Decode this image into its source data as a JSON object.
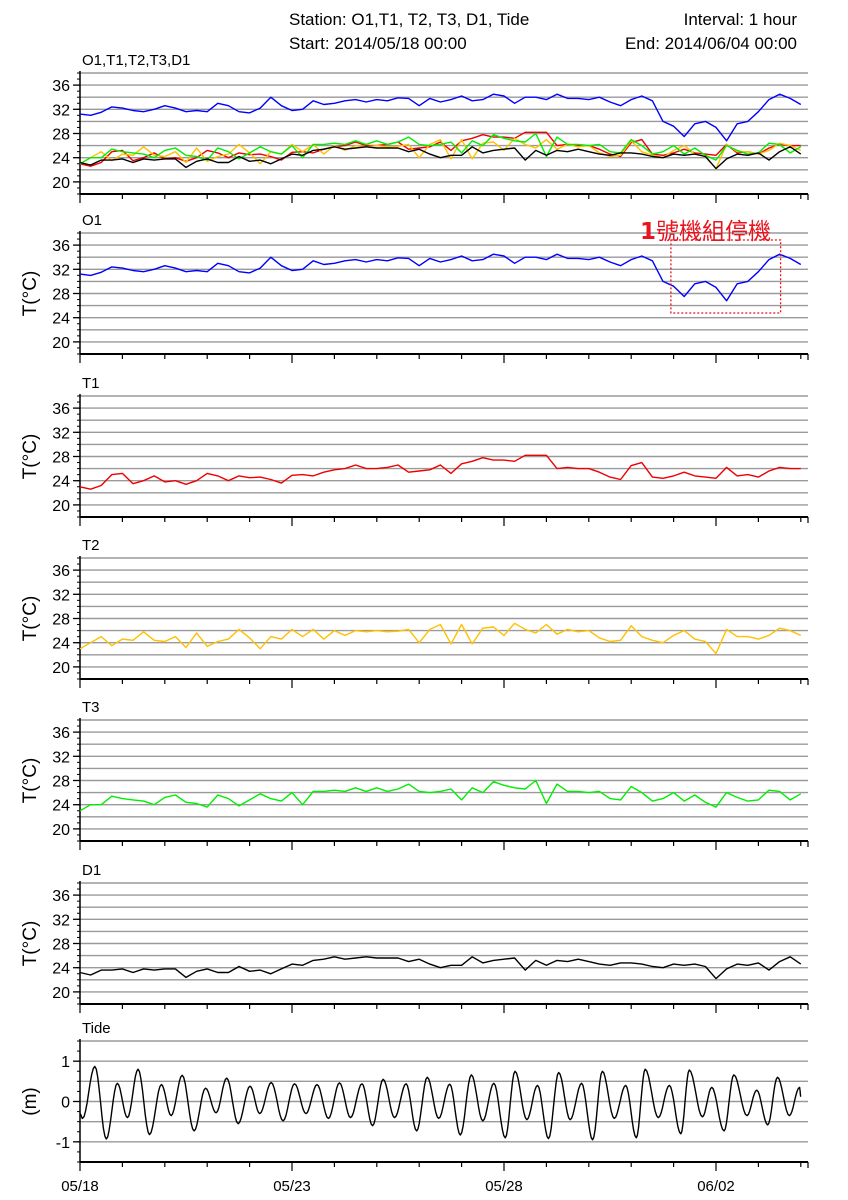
{
  "header": {
    "station": "Station: O1,T1, T2, T3, D1, Tide",
    "interval": "Interval: 1 hour",
    "start": "Start: 2014/05/18 00:00",
    "end": "End: 2014/06/04 00:00"
  },
  "annotation": {
    "num": "1",
    "text": "號機組停機",
    "color": "#e8141e"
  },
  "chart_data": {
    "type": "line",
    "x_unit": "days since 2014/05/18 00:00",
    "x_step_hours": 6,
    "xlim": [
      0,
      17.15
    ],
    "x_ticks": [
      0,
      5,
      10,
      15
    ],
    "x_tick_labels": [
      "05/18",
      "05/23",
      "05/28",
      "06/02"
    ],
    "colors": {
      "O1": "#0000ff",
      "T1": "#ee0000",
      "T2": "#ffc000",
      "T3": "#00ee00",
      "D1": "#000000",
      "Tide": "#000000"
    },
    "series": {
      "O1": [
        31.2,
        31.0,
        31.5,
        32.4,
        32.2,
        31.8,
        31.6,
        32.0,
        32.6,
        32.2,
        31.6,
        31.8,
        31.6,
        33.0,
        32.6,
        31.6,
        31.4,
        32.2,
        34.0,
        32.6,
        31.8,
        32.0,
        33.4,
        32.8,
        33.0,
        33.4,
        33.6,
        33.2,
        33.6,
        33.4,
        33.9,
        33.8,
        32.6,
        33.8,
        33.2,
        33.6,
        34.2,
        33.4,
        33.6,
        34.5,
        34.2,
        33.0,
        34.0,
        34.0,
        33.6,
        34.5,
        33.8,
        33.8,
        33.6,
        34.0,
        33.2,
        32.6,
        33.6,
        34.2,
        33.4,
        30.0,
        29.2,
        27.5,
        29.6,
        30.0,
        29.0,
        26.8,
        29.6,
        30.0,
        31.6,
        33.6,
        34.5,
        33.8,
        32.8
      ],
      "T1": [
        23.0,
        22.6,
        23.2,
        25.0,
        25.2,
        23.5,
        24.0,
        24.8,
        23.8,
        24.0,
        23.4,
        24.0,
        25.2,
        24.8,
        24.0,
        24.8,
        24.5,
        24.6,
        24.2,
        23.6,
        24.9,
        25.0,
        24.8,
        25.4,
        25.8,
        26.0,
        26.6,
        26.0,
        26.0,
        26.2,
        26.6,
        25.4,
        25.6,
        25.8,
        26.6,
        25.2,
        26.8,
        27.2,
        27.8,
        27.4,
        27.4,
        27.2,
        28.2,
        28.2,
        28.2,
        26.0,
        26.2,
        26.0,
        26.0,
        25.4,
        24.6,
        24.2,
        26.5,
        27.0,
        24.6,
        24.4,
        24.8,
        25.4,
        24.8,
        24.6,
        24.4,
        26.2,
        24.8,
        25.0,
        24.6,
        25.6,
        26.2,
        26.0,
        26.0
      ],
      "T2": [
        23.0,
        24.0,
        25.0,
        23.5,
        24.6,
        24.4,
        25.8,
        24.4,
        24.2,
        25.0,
        23.2,
        25.6,
        23.4,
        24.2,
        24.6,
        26.2,
        24.8,
        23.0,
        25.0,
        24.6,
        26.2,
        25.0,
        26.2,
        24.6,
        26.0,
        25.2,
        26.0,
        25.8,
        26.0,
        25.8,
        25.9,
        26.2,
        24.0,
        26.2,
        27.0,
        23.8,
        27.0,
        23.8,
        26.4,
        26.6,
        25.2,
        27.2,
        26.2,
        25.6,
        27.0,
        25.4,
        26.2,
        25.8,
        26.0,
        24.8,
        24.2,
        24.4,
        26.8,
        25.0,
        24.4,
        24.0,
        25.2,
        26.0,
        24.6,
        24.2,
        22.2,
        26.2,
        25.0,
        25.0,
        24.6,
        25.2,
        26.4,
        26.0,
        25.2
      ],
      "T3": [
        23.0,
        24.0,
        24.0,
        25.4,
        25.0,
        24.8,
        24.6,
        24.0,
        25.2,
        25.6,
        24.4,
        24.2,
        23.6,
        25.6,
        25.0,
        23.8,
        24.8,
        25.8,
        25.0,
        24.6,
        26.0,
        24.0,
        26.2,
        26.2,
        26.4,
        26.2,
        26.8,
        26.2,
        26.8,
        26.2,
        26.6,
        27.4,
        26.2,
        26.0,
        26.2,
        26.6,
        24.8,
        26.8,
        26.0,
        27.8,
        27.2,
        26.8,
        26.6,
        28.0,
        24.2,
        27.4,
        26.2,
        26.2,
        26.0,
        26.2,
        25.0,
        24.8,
        27.0,
        26.0,
        24.6,
        25.0,
        26.0,
        24.6,
        25.6,
        24.4,
        23.6,
        26.0,
        25.2,
        24.6,
        24.8,
        26.4,
        26.2,
        24.8,
        25.8
      ],
      "D1": [
        23.2,
        22.8,
        23.6,
        23.6,
        23.8,
        23.2,
        23.8,
        23.6,
        23.8,
        23.8,
        22.4,
        23.4,
        23.8,
        23.2,
        23.2,
        24.2,
        23.4,
        23.6,
        23.0,
        23.8,
        24.6,
        24.4,
        25.2,
        25.4,
        25.8,
        25.4,
        25.6,
        25.8,
        25.6,
        25.6,
        25.6,
        25.0,
        25.4,
        24.6,
        24.0,
        24.4,
        24.4,
        25.8,
        24.8,
        25.2,
        25.4,
        25.6,
        23.6,
        25.2,
        24.4,
        25.2,
        25.0,
        25.4,
        25.0,
        24.6,
        24.4,
        24.8,
        24.8,
        24.6,
        24.2,
        24.0,
        24.6,
        24.4,
        24.6,
        24.2,
        22.2,
        23.8,
        24.6,
        24.4,
        24.8,
        23.6,
        25.0,
        25.8,
        24.6
      ]
    },
    "tide_extrema": [
      [
        0,
        -0.3
      ],
      [
        0.06,
        -0.42
      ],
      [
        0.35,
        0.87
      ],
      [
        0.62,
        -0.93
      ],
      [
        0.88,
        0.45
      ],
      [
        1.12,
        -0.4
      ],
      [
        1.37,
        0.8
      ],
      [
        1.64,
        -0.82
      ],
      [
        1.92,
        0.42
      ],
      [
        2.15,
        -0.35
      ],
      [
        2.41,
        0.65
      ],
      [
        2.69,
        -0.73
      ],
      [
        2.96,
        0.33
      ],
      [
        3.21,
        -0.28
      ],
      [
        3.46,
        0.58
      ],
      [
        3.73,
        -0.55
      ],
      [
        4.01,
        0.38
      ],
      [
        4.24,
        -0.3
      ],
      [
        4.51,
        0.47
      ],
      [
        4.79,
        -0.48
      ],
      [
        5.06,
        0.44
      ],
      [
        5.33,
        -0.3
      ],
      [
        5.59,
        0.42
      ],
      [
        5.86,
        -0.42
      ],
      [
        6.12,
        0.46
      ],
      [
        6.38,
        -0.4
      ],
      [
        6.65,
        0.44
      ],
      [
        6.9,
        -0.6
      ],
      [
        7.15,
        0.55
      ],
      [
        7.42,
        -0.4
      ],
      [
        7.69,
        0.44
      ],
      [
        7.94,
        -0.73
      ],
      [
        8.19,
        0.6
      ],
      [
        8.46,
        -0.42
      ],
      [
        8.72,
        0.43
      ],
      [
        8.97,
        -0.83
      ],
      [
        9.23,
        0.66
      ],
      [
        9.5,
        -0.48
      ],
      [
        9.76,
        0.45
      ],
      [
        10.03,
        -0.9
      ],
      [
        10.26,
        0.75
      ],
      [
        10.54,
        -0.45
      ],
      [
        10.79,
        0.4
      ],
      [
        11.05,
        -0.92
      ],
      [
        11.29,
        0.72
      ],
      [
        11.56,
        -0.45
      ],
      [
        11.83,
        0.45
      ],
      [
        12.09,
        -0.95
      ],
      [
        12.32,
        0.75
      ],
      [
        12.6,
        -0.42
      ],
      [
        12.87,
        0.4
      ],
      [
        13.12,
        -0.9
      ],
      [
        13.33,
        0.8
      ],
      [
        13.64,
        -0.4
      ],
      [
        13.9,
        0.4
      ],
      [
        14.17,
        -0.8
      ],
      [
        14.37,
        0.78
      ],
      [
        14.68,
        -0.38
      ],
      [
        14.9,
        0.35
      ],
      [
        15.19,
        -0.73
      ],
      [
        15.42,
        0.66
      ],
      [
        15.73,
        -0.35
      ],
      [
        15.96,
        0.28
      ],
      [
        16.22,
        -0.58
      ],
      [
        16.45,
        0.6
      ],
      [
        16.73,
        -0.35
      ],
      [
        16.97,
        0.35
      ],
      [
        17.0,
        0.12
      ]
    ],
    "panels": [
      {
        "title": "O1,T1,T2,T3,D1",
        "ylabel": "",
        "keys": [
          "O1",
          "T1",
          "T2",
          "T3",
          "D1"
        ],
        "ylim": [
          18,
          38
        ],
        "yticks": [
          "36",
          "32",
          "28",
          "24",
          "20"
        ],
        "grid_step": 2
      },
      {
        "title": "O1",
        "ylabel": "T(°C)",
        "keys": [
          "O1"
        ],
        "ylim": [
          18,
          38
        ],
        "yticks": [
          "36",
          "32",
          "28",
          "24",
          "20"
        ],
        "grid_step": 2
      },
      {
        "title": "T1",
        "ylabel": "T(°C)",
        "keys": [
          "T1"
        ],
        "ylim": [
          18,
          38
        ],
        "yticks": [
          "36",
          "32",
          "28",
          "24",
          "20"
        ],
        "grid_step": 2
      },
      {
        "title": "T2",
        "ylabel": "T(°C)",
        "keys": [
          "T2"
        ],
        "ylim": [
          18,
          38
        ],
        "yticks": [
          "36",
          "32",
          "28",
          "24",
          "20"
        ],
        "grid_step": 2
      },
      {
        "title": "T3",
        "ylabel": "T(°C)",
        "keys": [
          "T3"
        ],
        "ylim": [
          18,
          38
        ],
        "yticks": [
          "36",
          "32",
          "28",
          "24",
          "20"
        ],
        "grid_step": 2
      },
      {
        "title": "D1",
        "ylabel": "T(°C)",
        "keys": [
          "D1"
        ],
        "ylim": [
          18,
          38
        ],
        "yticks": [
          "36",
          "32",
          "28",
          "24",
          "20"
        ],
        "grid_step": 2
      },
      {
        "title": "Tide",
        "ylabel": "(m)",
        "keys": [
          "Tide"
        ],
        "ylim": [
          -1.5,
          1.5
        ],
        "yticks": [
          "1",
          "0",
          "-1"
        ],
        "grid_step": 0.5
      }
    ],
    "shutdown_window_days": [
      13.96,
      16.5
    ]
  }
}
